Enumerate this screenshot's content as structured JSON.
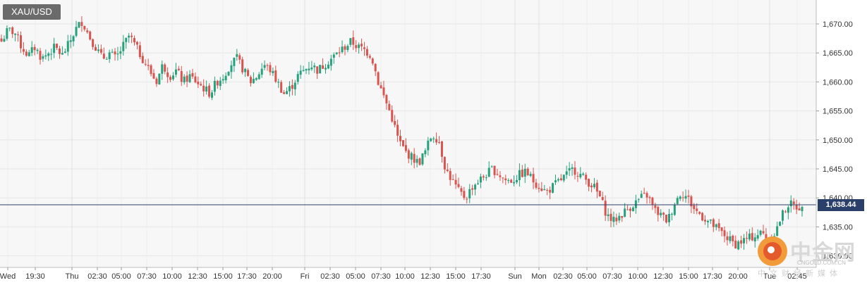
{
  "chart_data": {
    "type": "candlestick",
    "symbol": "XAU/USD",
    "current_price": 1638.44,
    "current_price_label": "1,638.44",
    "y_axis": {
      "ticks": [
        1630,
        1635,
        1640,
        1645,
        1650,
        1655,
        1660,
        1665,
        1670
      ],
      "tick_labels": [
        "1,630.00",
        "1,635.00",
        "1,640.00",
        "1,645.00",
        "1,650.00",
        "1,655.00",
        "1,660.00",
        "1,665.00",
        "1,670.00"
      ]
    },
    "x_axis": {
      "tick_labels": [
        "Wed",
        "19:30",
        "Thu",
        "02:30",
        "05:00",
        "07:30",
        "10:00",
        "12:30",
        "15:00",
        "17:30",
        "20:00",
        "Fri",
        "02:30",
        "05:00",
        "07:30",
        "10:00",
        "12:30",
        "15:00",
        "17:30",
        "Sun",
        "Mon",
        "02:30",
        "05:00",
        "07:30",
        "10:00",
        "12:30",
        "15:00",
        "17:30",
        "20:00",
        "Tue",
        "02:45"
      ]
    },
    "up_color": "#26a17b",
    "down_color": "#d9534f",
    "close_path": [
      1667,
      1669,
      1668.5,
      1666,
      1664.5,
      1666,
      1664,
      1665,
      1666,
      1664.5,
      1666.5,
      1669,
      1670.5,
      1668,
      1666,
      1664,
      1665,
      1664,
      1666,
      1668,
      1666,
      1664,
      1662,
      1660,
      1663,
      1661,
      1662,
      1660,
      1661,
      1660,
      1659,
      1658,
      1660,
      1661,
      1663,
      1664,
      1662,
      1660,
      1661,
      1663,
      1662,
      1660,
      1658,
      1659,
      1661,
      1662,
      1663,
      1662,
      1663,
      1664,
      1665,
      1666,
      1667,
      1666,
      1665.5,
      1664.5,
      1660,
      1657,
      1654,
      1650,
      1648,
      1647,
      1646,
      1648,
      1651,
      1650,
      1645,
      1643,
      1641,
      1640,
      1642,
      1643,
      1644,
      1645,
      1644,
      1643,
      1643,
      1644,
      1644.5,
      1643,
      1642,
      1641,
      1642,
      1643,
      1644,
      1645,
      1644,
      1643,
      1642,
      1640,
      1637,
      1636,
      1637,
      1638,
      1639,
      1640,
      1640.5,
      1638,
      1637,
      1636,
      1639,
      1641,
      1640,
      1638,
      1637,
      1636,
      1635,
      1634,
      1633,
      1632,
      1632.5,
      1633,
      1633.5,
      1634,
      1633,
      1634,
      1637,
      1639,
      1638.5,
      1638.44
    ]
  },
  "watermark": {
    "brand_cn": "中金网",
    "brand_en": "CNGOLD.COM.CN",
    "tagline_cn": "中文财经新媒体"
  }
}
